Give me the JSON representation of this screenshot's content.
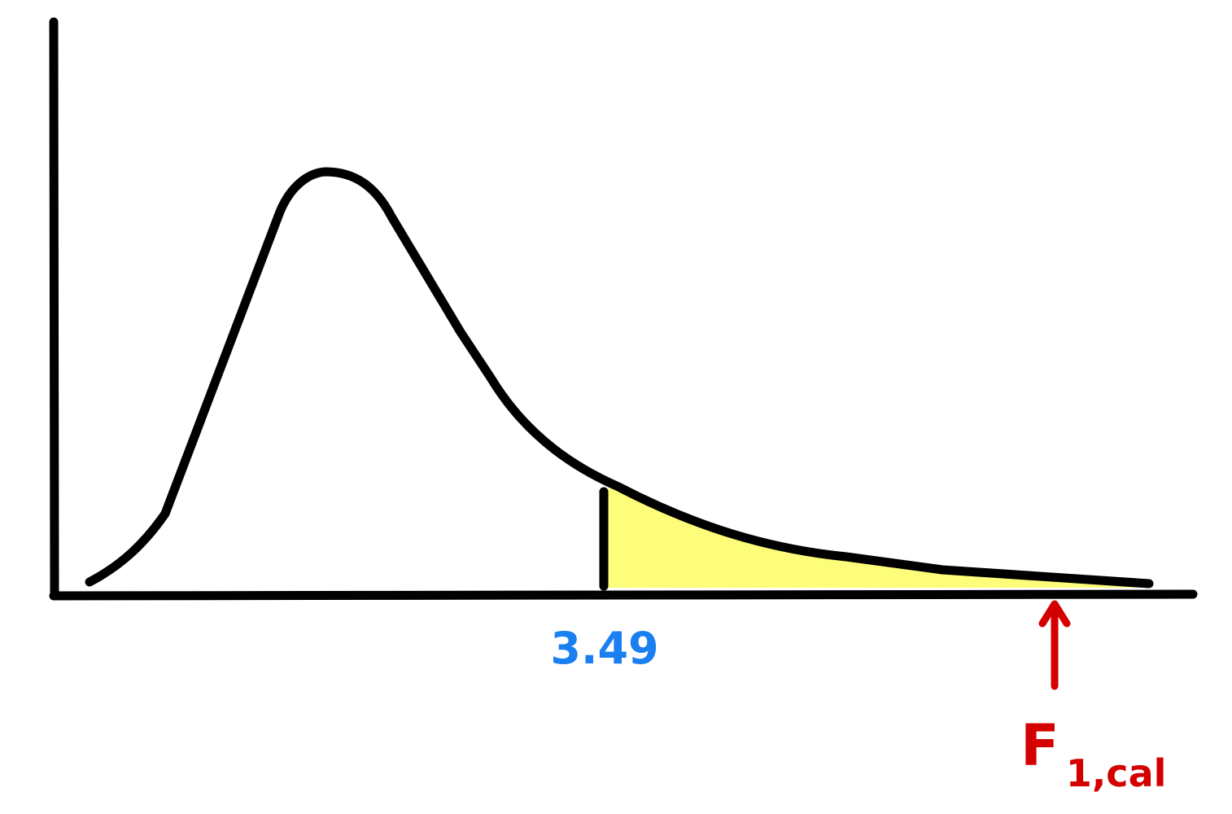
{
  "diagram": {
    "critical_value_label": "3.49",
    "calculated_label": {
      "main": "F",
      "subscript": "1,cal"
    }
  },
  "colors": {
    "curve": "#000000",
    "shaded_region": "#fdfd7a",
    "critical_value_text": "#1a7ff0",
    "calculated_text": "#d40000"
  }
}
